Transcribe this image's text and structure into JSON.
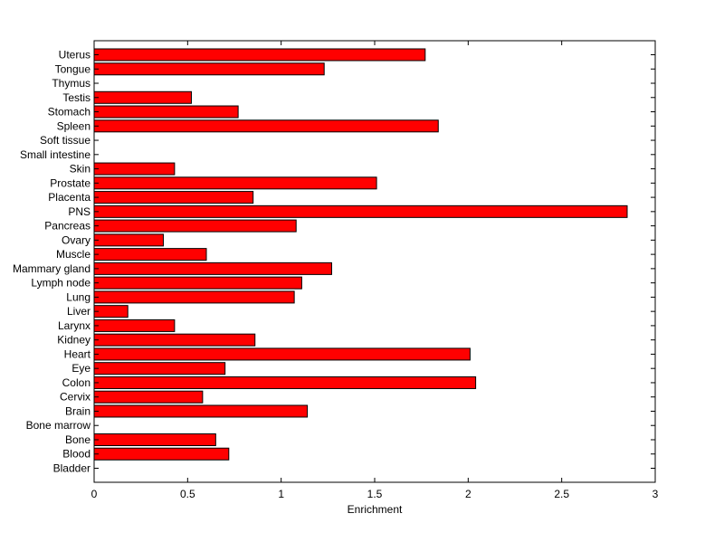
{
  "chart_data": {
    "type": "bar",
    "orientation": "horizontal",
    "title": "",
    "xlabel": "Enrichment",
    "ylabel": "",
    "xlim": [
      0,
      3
    ],
    "x_ticks": [
      0,
      0.5,
      1,
      1.5,
      2,
      2.5,
      3
    ],
    "x_tick_labels": [
      "0",
      "0.5",
      "1",
      "1.5",
      "2",
      "2.5",
      "3"
    ],
    "grid": false,
    "bar_color": "#ff0000",
    "bar_edge_color": "#000000",
    "categories": [
      "Bladder",
      "Blood",
      "Bone",
      "Bone marrow",
      "Brain",
      "Cervix",
      "Colon",
      "Eye",
      "Heart",
      "Kidney",
      "Larynx",
      "Liver",
      "Lung",
      "Lymph node",
      "Mammary gland",
      "Muscle",
      "Ovary",
      "Pancreas",
      "PNS",
      "Placenta",
      "Prostate",
      "Skin",
      "Small intestine",
      "Soft tissue",
      "Spleen",
      "Stomach",
      "Testis",
      "Thymus",
      "Tongue",
      "Uterus"
    ],
    "values": [
      0,
      0.72,
      0.65,
      0,
      1.14,
      0.58,
      2.04,
      0.7,
      2.01,
      0.86,
      0.43,
      0.18,
      1.07,
      1.11,
      1.27,
      0.6,
      0.37,
      1.08,
      2.85,
      0.85,
      1.51,
      0.43,
      0,
      0,
      1.84,
      0.77,
      0.52,
      0,
      1.23,
      1.77
    ]
  }
}
